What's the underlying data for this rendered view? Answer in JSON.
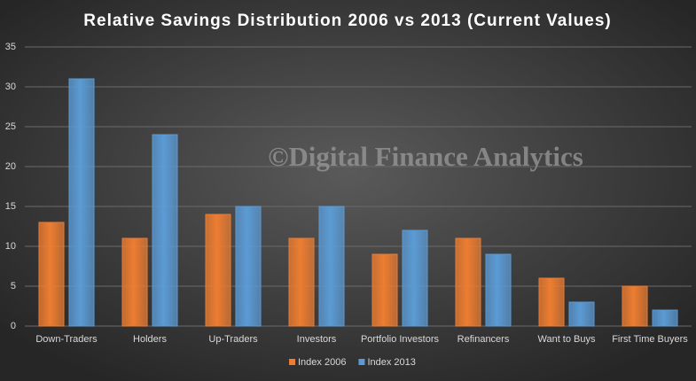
{
  "chart_data": {
    "type": "bar",
    "title": "Relative Savings Distribution  2006 vs 2013 (Current Values)",
    "watermark": "©Digital Finance Analytics",
    "categories": [
      "Down-Traders",
      "Holders",
      "Up-Traders",
      "Investors",
      "Portfolio Investors",
      "Refinancers",
      "Want to Buys",
      "First Time Buyers"
    ],
    "series": [
      {
        "name": "Index 2006",
        "color": "#ed7d31",
        "values": [
          13,
          11,
          14,
          11,
          9,
          11,
          6,
          5
        ]
      },
      {
        "name": "Index 2013",
        "color": "#5b9bd5",
        "values": [
          31,
          24,
          15,
          15,
          12,
          9,
          3,
          2
        ]
      }
    ],
    "ylim": [
      0,
      35
    ],
    "yticks": [
      0,
      5,
      10,
      15,
      20,
      25,
      30,
      35
    ],
    "grid": true,
    "legend": "bottom"
  }
}
